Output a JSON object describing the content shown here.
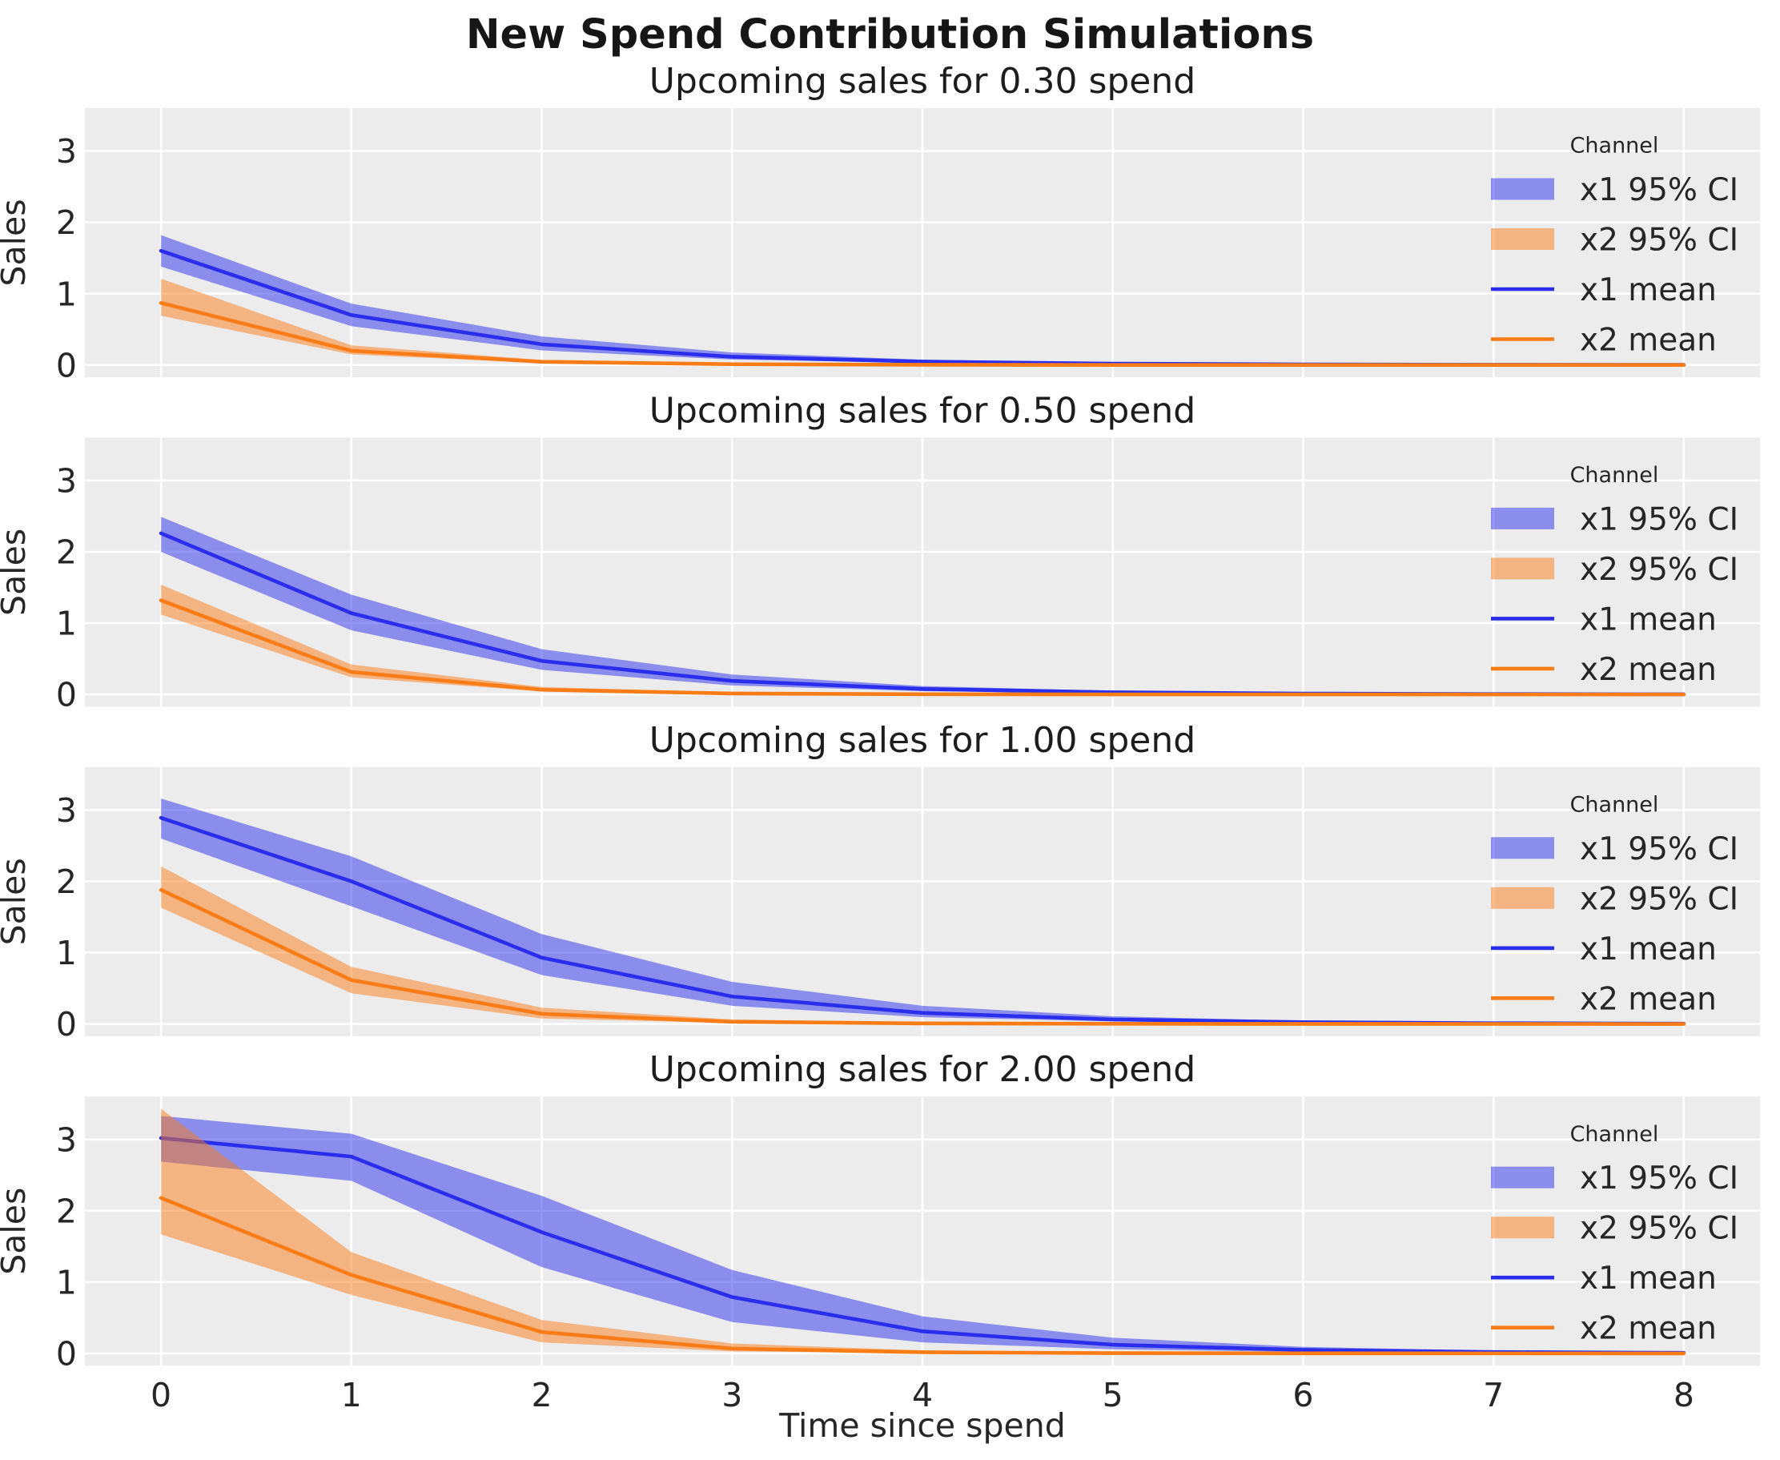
{
  "figure": {
    "suptitle": "New Spend Contribution Simulations",
    "xlabel": "Time since spend",
    "ylabel": "Sales",
    "background_color": "#ffffff",
    "axes_background_color": "#ececec",
    "grid_color": "#ffffff",
    "text_color": "#262626",
    "title_color": "#161616"
  },
  "legend": {
    "title": "Channel",
    "entries": [
      {
        "label": "x1 95% CI",
        "type": "patch",
        "color": "#2a2eec"
      },
      {
        "label": "x2 95% CI",
        "type": "patch",
        "color": "#fa7c17"
      },
      {
        "label": "x1 mean",
        "type": "line",
        "color": "#2a2eec"
      },
      {
        "label": "x2 mean",
        "type": "line",
        "color": "#fa7c17"
      }
    ],
    "band_alpha": 0.5
  },
  "chart_data": [
    {
      "type": "line",
      "title": "Upcoming sales for 0.30 spend",
      "spend": 0.3,
      "xlabel": "Time since spend",
      "ylabel": "Sales",
      "x": [
        0,
        1,
        2,
        3,
        4,
        5,
        6,
        7,
        8
      ],
      "xticks": [
        0,
        1,
        2,
        3,
        4,
        5,
        6,
        7,
        8
      ],
      "yticks": [
        0,
        1,
        2,
        3
      ],
      "xlim": [
        -0.4,
        8.4
      ],
      "ylim": [
        -0.1715,
        3.6015
      ],
      "grid": true,
      "legend_position": "upper right",
      "series": [
        {
          "name": "x1 mean",
          "color": "#2a2eec",
          "values": [
            1.6,
            0.7,
            0.29,
            0.115,
            0.047,
            0.019,
            0.008,
            0.003,
            0.0015
          ]
        },
        {
          "name": "x2 mean",
          "color": "#fa7c17",
          "values": [
            0.87,
            0.2,
            0.045,
            0.011,
            0.003,
            0.001,
            0.0005,
            0.0002,
            0.0001
          ]
        }
      ],
      "bands": [
        {
          "name": "x1 95% CI",
          "color": "#2a2eec",
          "alpha": 0.5,
          "lo": [
            1.38,
            0.545,
            0.205,
            0.076,
            0.028,
            0.011,
            0.0045,
            0.002,
            0.001
          ],
          "hi": [
            1.82,
            0.86,
            0.4,
            0.175,
            0.075,
            0.032,
            0.0135,
            0.0055,
            0.0025
          ]
        },
        {
          "name": "x2 95% CI",
          "color": "#fa7c17",
          "alpha": 0.5,
          "lo": [
            0.69,
            0.148,
            0.027,
            0.0055,
            0.0012,
            0.0004,
            0.0002,
            0.0001,
            5e-05
          ],
          "hi": [
            1.21,
            0.275,
            0.07,
            0.021,
            0.007,
            0.0025,
            0.001,
            0.0004,
            0.0002
          ]
        }
      ]
    },
    {
      "type": "line",
      "title": "Upcoming sales for 0.50 spend",
      "spend": 0.5,
      "xlabel": "Time since spend",
      "ylabel": "Sales",
      "x": [
        0,
        1,
        2,
        3,
        4,
        5,
        6,
        7,
        8
      ],
      "xticks": [
        0,
        1,
        2,
        3,
        4,
        5,
        6,
        7,
        8
      ],
      "yticks": [
        0,
        1,
        2,
        3
      ],
      "xlim": [
        -0.4,
        8.4
      ],
      "ylim": [
        -0.1715,
        3.6015
      ],
      "grid": true,
      "legend_position": "upper right",
      "series": [
        {
          "name": "x1 mean",
          "color": "#2a2eec",
          "values": [
            2.26,
            1.14,
            0.47,
            0.19,
            0.077,
            0.031,
            0.0125,
            0.005,
            0.002
          ]
        },
        {
          "name": "x2 mean",
          "color": "#fa7c17",
          "values": [
            1.32,
            0.315,
            0.066,
            0.0135,
            0.0032,
            0.0009,
            0.0003,
            0.0001,
            5e-05
          ]
        }
      ],
      "bands": [
        {
          "name": "x1 95% CI",
          "color": "#2a2eec",
          "alpha": 0.5,
          "lo": [
            2.0,
            0.9,
            0.345,
            0.126,
            0.047,
            0.018,
            0.007,
            0.003,
            0.0013
          ],
          "hi": [
            2.49,
            1.4,
            0.635,
            0.28,
            0.118,
            0.05,
            0.021,
            0.009,
            0.0038
          ]
        },
        {
          "name": "x2 95% CI",
          "color": "#fa7c17",
          "alpha": 0.5,
          "lo": [
            1.12,
            0.24,
            0.0425,
            0.0072,
            0.0015,
            0.0004,
            0.0001,
            5e-05,
            3e-05
          ],
          "hi": [
            1.54,
            0.42,
            0.105,
            0.029,
            0.0085,
            0.003,
            0.0011,
            0.0004,
            0.0002
          ]
        }
      ]
    },
    {
      "type": "line",
      "title": "Upcoming sales for 1.00 spend",
      "spend": 1.0,
      "xlabel": "Time since spend",
      "ylabel": "Sales",
      "x": [
        0,
        1,
        2,
        3,
        4,
        5,
        6,
        7,
        8
      ],
      "xticks": [
        0,
        1,
        2,
        3,
        4,
        5,
        6,
        7,
        8
      ],
      "yticks": [
        0,
        1,
        2,
        3
      ],
      "xlim": [
        -0.4,
        8.4
      ],
      "ylim": [
        -0.1715,
        3.6015
      ],
      "grid": true,
      "legend_position": "upper right",
      "series": [
        {
          "name": "x1 mean",
          "color": "#2a2eec",
          "values": [
            2.89,
            2.0,
            0.93,
            0.385,
            0.155,
            0.062,
            0.025,
            0.01,
            0.004
          ]
        },
        {
          "name": "x2 mean",
          "color": "#fa7c17",
          "values": [
            1.88,
            0.615,
            0.142,
            0.03,
            0.0075,
            0.0022,
            0.0008,
            0.0003,
            0.0001
          ]
        }
      ],
      "bands": [
        {
          "name": "x1 95% CI",
          "color": "#2a2eec",
          "alpha": 0.5,
          "lo": [
            2.6,
            1.65,
            0.685,
            0.255,
            0.095,
            0.036,
            0.014,
            0.0055,
            0.0023
          ],
          "hi": [
            3.16,
            2.35,
            1.26,
            0.59,
            0.255,
            0.107,
            0.044,
            0.018,
            0.0075
          ]
        },
        {
          "name": "x2 95% CI",
          "color": "#fa7c17",
          "alpha": 0.5,
          "lo": [
            1.63,
            0.43,
            0.076,
            0.0135,
            0.003,
            0.0008,
            0.0003,
            0.0001,
            5e-05
          ],
          "hi": [
            2.21,
            0.8,
            0.228,
            0.063,
            0.019,
            0.0065,
            0.0024,
            0.0009,
            0.0004
          ]
        }
      ]
    },
    {
      "type": "line",
      "title": "Upcoming sales for 2.00 spend",
      "spend": 2.0,
      "xlabel": "Time since spend",
      "ylabel": "Sales",
      "x": [
        0,
        1,
        2,
        3,
        4,
        5,
        6,
        7,
        8
      ],
      "xticks": [
        0,
        1,
        2,
        3,
        4,
        5,
        6,
        7,
        8
      ],
      "yticks": [
        0,
        1,
        2,
        3
      ],
      "xlim": [
        -0.4,
        8.4
      ],
      "ylim": [
        -0.1715,
        3.6015
      ],
      "grid": true,
      "legend_position": "upper right",
      "series": [
        {
          "name": "x1 mean",
          "color": "#2a2eec",
          "values": [
            3.02,
            2.76,
            1.7,
            0.79,
            0.31,
            0.122,
            0.049,
            0.0195,
            0.008
          ]
        },
        {
          "name": "x2 mean",
          "color": "#fa7c17",
          "values": [
            2.18,
            1.1,
            0.3,
            0.068,
            0.0165,
            0.0045,
            0.0015,
            0.0006,
            0.0002
          ]
        }
      ],
      "bands": [
        {
          "name": "x1 95% CI",
          "color": "#2a2eec",
          "alpha": 0.5,
          "lo": [
            2.69,
            2.42,
            1.21,
            0.44,
            0.155,
            0.058,
            0.022,
            0.009,
            0.0038
          ],
          "hi": [
            3.33,
            3.08,
            2.21,
            1.17,
            0.52,
            0.22,
            0.092,
            0.038,
            0.016
          ]
        },
        {
          "name": "x2 95% CI",
          "color": "#fa7c17",
          "alpha": 0.5,
          "lo": [
            1.67,
            0.82,
            0.155,
            0.028,
            0.0065,
            0.0018,
            0.0006,
            0.0002,
            0.0001
          ],
          "hi": [
            3.43,
            1.42,
            0.47,
            0.14,
            0.042,
            0.013,
            0.0047,
            0.0018,
            0.0008
          ]
        }
      ]
    }
  ]
}
